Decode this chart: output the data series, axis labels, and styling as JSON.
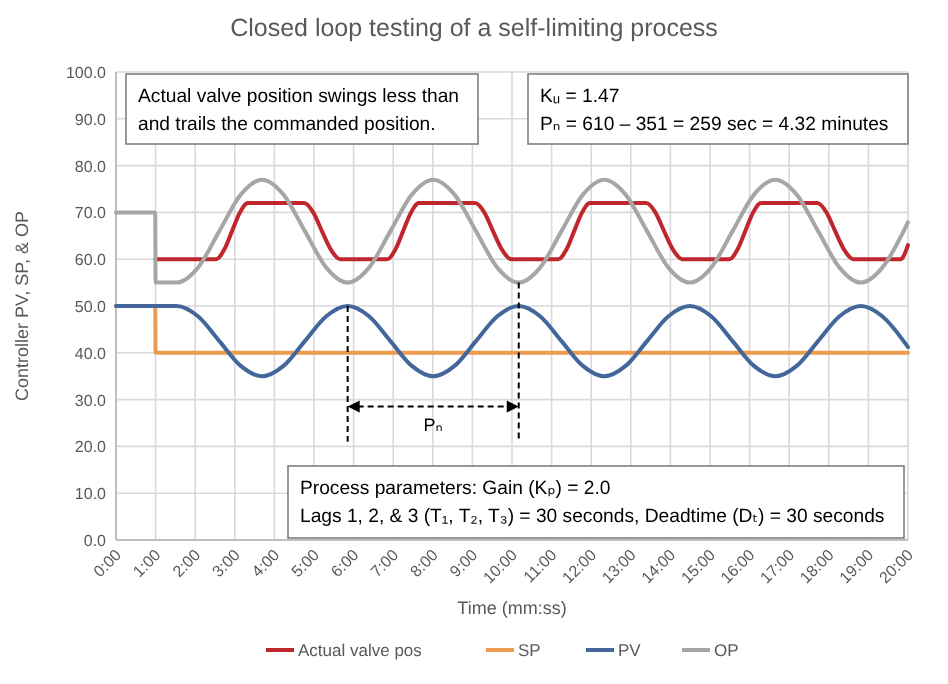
{
  "chart_data": {
    "type": "line",
    "title": "Closed loop testing of a self-limiting process",
    "xlabel": "Time (mm:ss)",
    "ylabel": "Controller PV, SP, & OP",
    "xlim": [
      0,
      20
    ],
    "ylim": [
      0,
      100
    ],
    "xticks": [
      {
        "value": 0,
        "label": "0:00"
      },
      {
        "value": 1,
        "label": "1:00"
      },
      {
        "value": 2,
        "label": "2:00"
      },
      {
        "value": 3,
        "label": "3:00"
      },
      {
        "value": 4,
        "label": "4:00"
      },
      {
        "value": 5,
        "label": "5:00"
      },
      {
        "value": 6,
        "label": "6:00"
      },
      {
        "value": 7,
        "label": "7:00"
      },
      {
        "value": 8,
        "label": "8:00"
      },
      {
        "value": 9,
        "label": "9:00"
      },
      {
        "value": 10,
        "label": "10:00"
      },
      {
        "value": 11,
        "label": "11:00"
      },
      {
        "value": 12,
        "label": "12:00"
      },
      {
        "value": 13,
        "label": "13:00"
      },
      {
        "value": 14,
        "label": "14:00"
      },
      {
        "value": 15,
        "label": "15:00"
      },
      {
        "value": 16,
        "label": "16:00"
      },
      {
        "value": 17,
        "label": "17:00"
      },
      {
        "value": 18,
        "label": "18:00"
      },
      {
        "value": 19,
        "label": "19:00"
      },
      {
        "value": 20,
        "label": "20:00"
      }
    ],
    "yticks": [
      {
        "value": 0,
        "label": "0.0"
      },
      {
        "value": 10,
        "label": "10.0"
      },
      {
        "value": 20,
        "label": "20.0"
      },
      {
        "value": 30,
        "label": "30.0"
      },
      {
        "value": 40,
        "label": "40.0"
      },
      {
        "value": 50,
        "label": "50.0"
      },
      {
        "value": 60,
        "label": "60.0"
      },
      {
        "value": 70,
        "label": "70.0"
      },
      {
        "value": 80,
        "label": "80.0"
      },
      {
        "value": 90,
        "label": "90.0"
      },
      {
        "value": 100,
        "label": "100.0"
      }
    ],
    "grid": true,
    "legend": "bottom",
    "marker": "none",
    "line_style": "solid",
    "series": [
      {
        "name": "Actual valve pos",
        "color": "#c0272d",
        "x": [
          1,
          2.53,
          2.73,
          2.93,
          3.13,
          3.33,
          4.75,
          4.98,
          5.2,
          5.43,
          5.66,
          6.85,
          7.05,
          7.25,
          7.45,
          7.65,
          9.07,
          9.3,
          9.52,
          9.75,
          9.98,
          11.17,
          11.37,
          11.57,
          11.77,
          11.97,
          13.39,
          13.62,
          13.84,
          14.07,
          14.3,
          15.49,
          15.69,
          15.89,
          16.09,
          16.29,
          17.71,
          17.94,
          18.16,
          18.39,
          18.62,
          19.81,
          20
        ],
        "values": [
          60,
          60,
          62,
          66,
          70,
          72,
          72,
          70,
          66,
          62,
          60,
          60,
          62,
          66,
          70,
          72,
          72,
          70,
          66,
          62,
          60,
          60,
          62,
          66,
          70,
          72,
          72,
          70,
          66,
          62,
          60,
          60,
          62,
          66,
          70,
          72,
          72,
          70,
          66,
          62,
          60,
          60,
          63
        ]
      },
      {
        "name": "SP",
        "color": "#ed9b4f",
        "x": [
          0,
          0.99,
          1,
          20
        ],
        "values": [
          50,
          50,
          40,
          40
        ]
      },
      {
        "name": "PV",
        "color": "#44679b",
        "x": [
          0,
          1,
          1.53,
          2.07,
          2.61,
          3.15,
          3.69,
          4.23,
          4.77,
          5.31,
          5.85,
          6.39,
          6.93,
          7.47,
          8.01,
          8.55,
          9.09,
          9.63,
          10.17,
          10.71,
          11.25,
          11.79,
          12.33,
          12.87,
          13.41,
          13.95,
          14.49,
          15.03,
          15.57,
          16.11,
          16.65,
          17.19,
          17.73,
          18.27,
          18.81,
          19.35,
          19.89,
          20
        ],
        "values": [
          50,
          50,
          50,
          47.8,
          42.5,
          37.2,
          35,
          37.2,
          42.5,
          47.8,
          50,
          47.8,
          42.5,
          37.2,
          35,
          37.2,
          42.5,
          47.8,
          50,
          47.8,
          42.5,
          37.2,
          35,
          37.2,
          42.5,
          47.8,
          50,
          47.8,
          42.5,
          37.2,
          35,
          37.2,
          42.5,
          47.8,
          50,
          47.8,
          42.5,
          41.2
        ]
      },
      {
        "name": "OP",
        "color": "#a6a6a6",
        "x": [
          0,
          0.99,
          1,
          1.53,
          2.07,
          2.61,
          3.15,
          3.69,
          4.23,
          4.77,
          5.31,
          5.85,
          6.39,
          6.93,
          7.47,
          8.01,
          8.55,
          9.09,
          9.63,
          10.17,
          10.71,
          11.25,
          11.79,
          12.33,
          12.87,
          13.41,
          13.95,
          14.49,
          15.03,
          15.57,
          16.11,
          16.65,
          17.19,
          17.73,
          18.27,
          18.81,
          19.35,
          19.89,
          20
        ],
        "values": [
          70,
          70,
          55,
          55,
          58.2,
          66,
          73.8,
          77,
          73.8,
          66,
          58.2,
          55,
          58.2,
          66,
          73.8,
          77,
          73.8,
          66,
          58.2,
          55,
          58.2,
          66,
          73.8,
          77,
          73.8,
          66,
          58.2,
          55,
          58.2,
          66,
          73.8,
          77,
          73.8,
          66,
          58.2,
          55,
          58.2,
          66,
          67.9
        ]
      }
    ],
    "annotations": [
      "Pₙ",
      "Actual valve position swings less than\nand trails the commanded position.",
      "Kᵤ = 1.47\nPₙ = 610 – 351 = 259 sec = 4.32 minutes",
      "Process parameters:  Gain (Kₚ) = 2.0\nLags 1, 2, & 3 (T₁, T₂, T₃) = 30 seconds, Deadtime (Dₜ) = 30 seconds"
    ]
  }
}
